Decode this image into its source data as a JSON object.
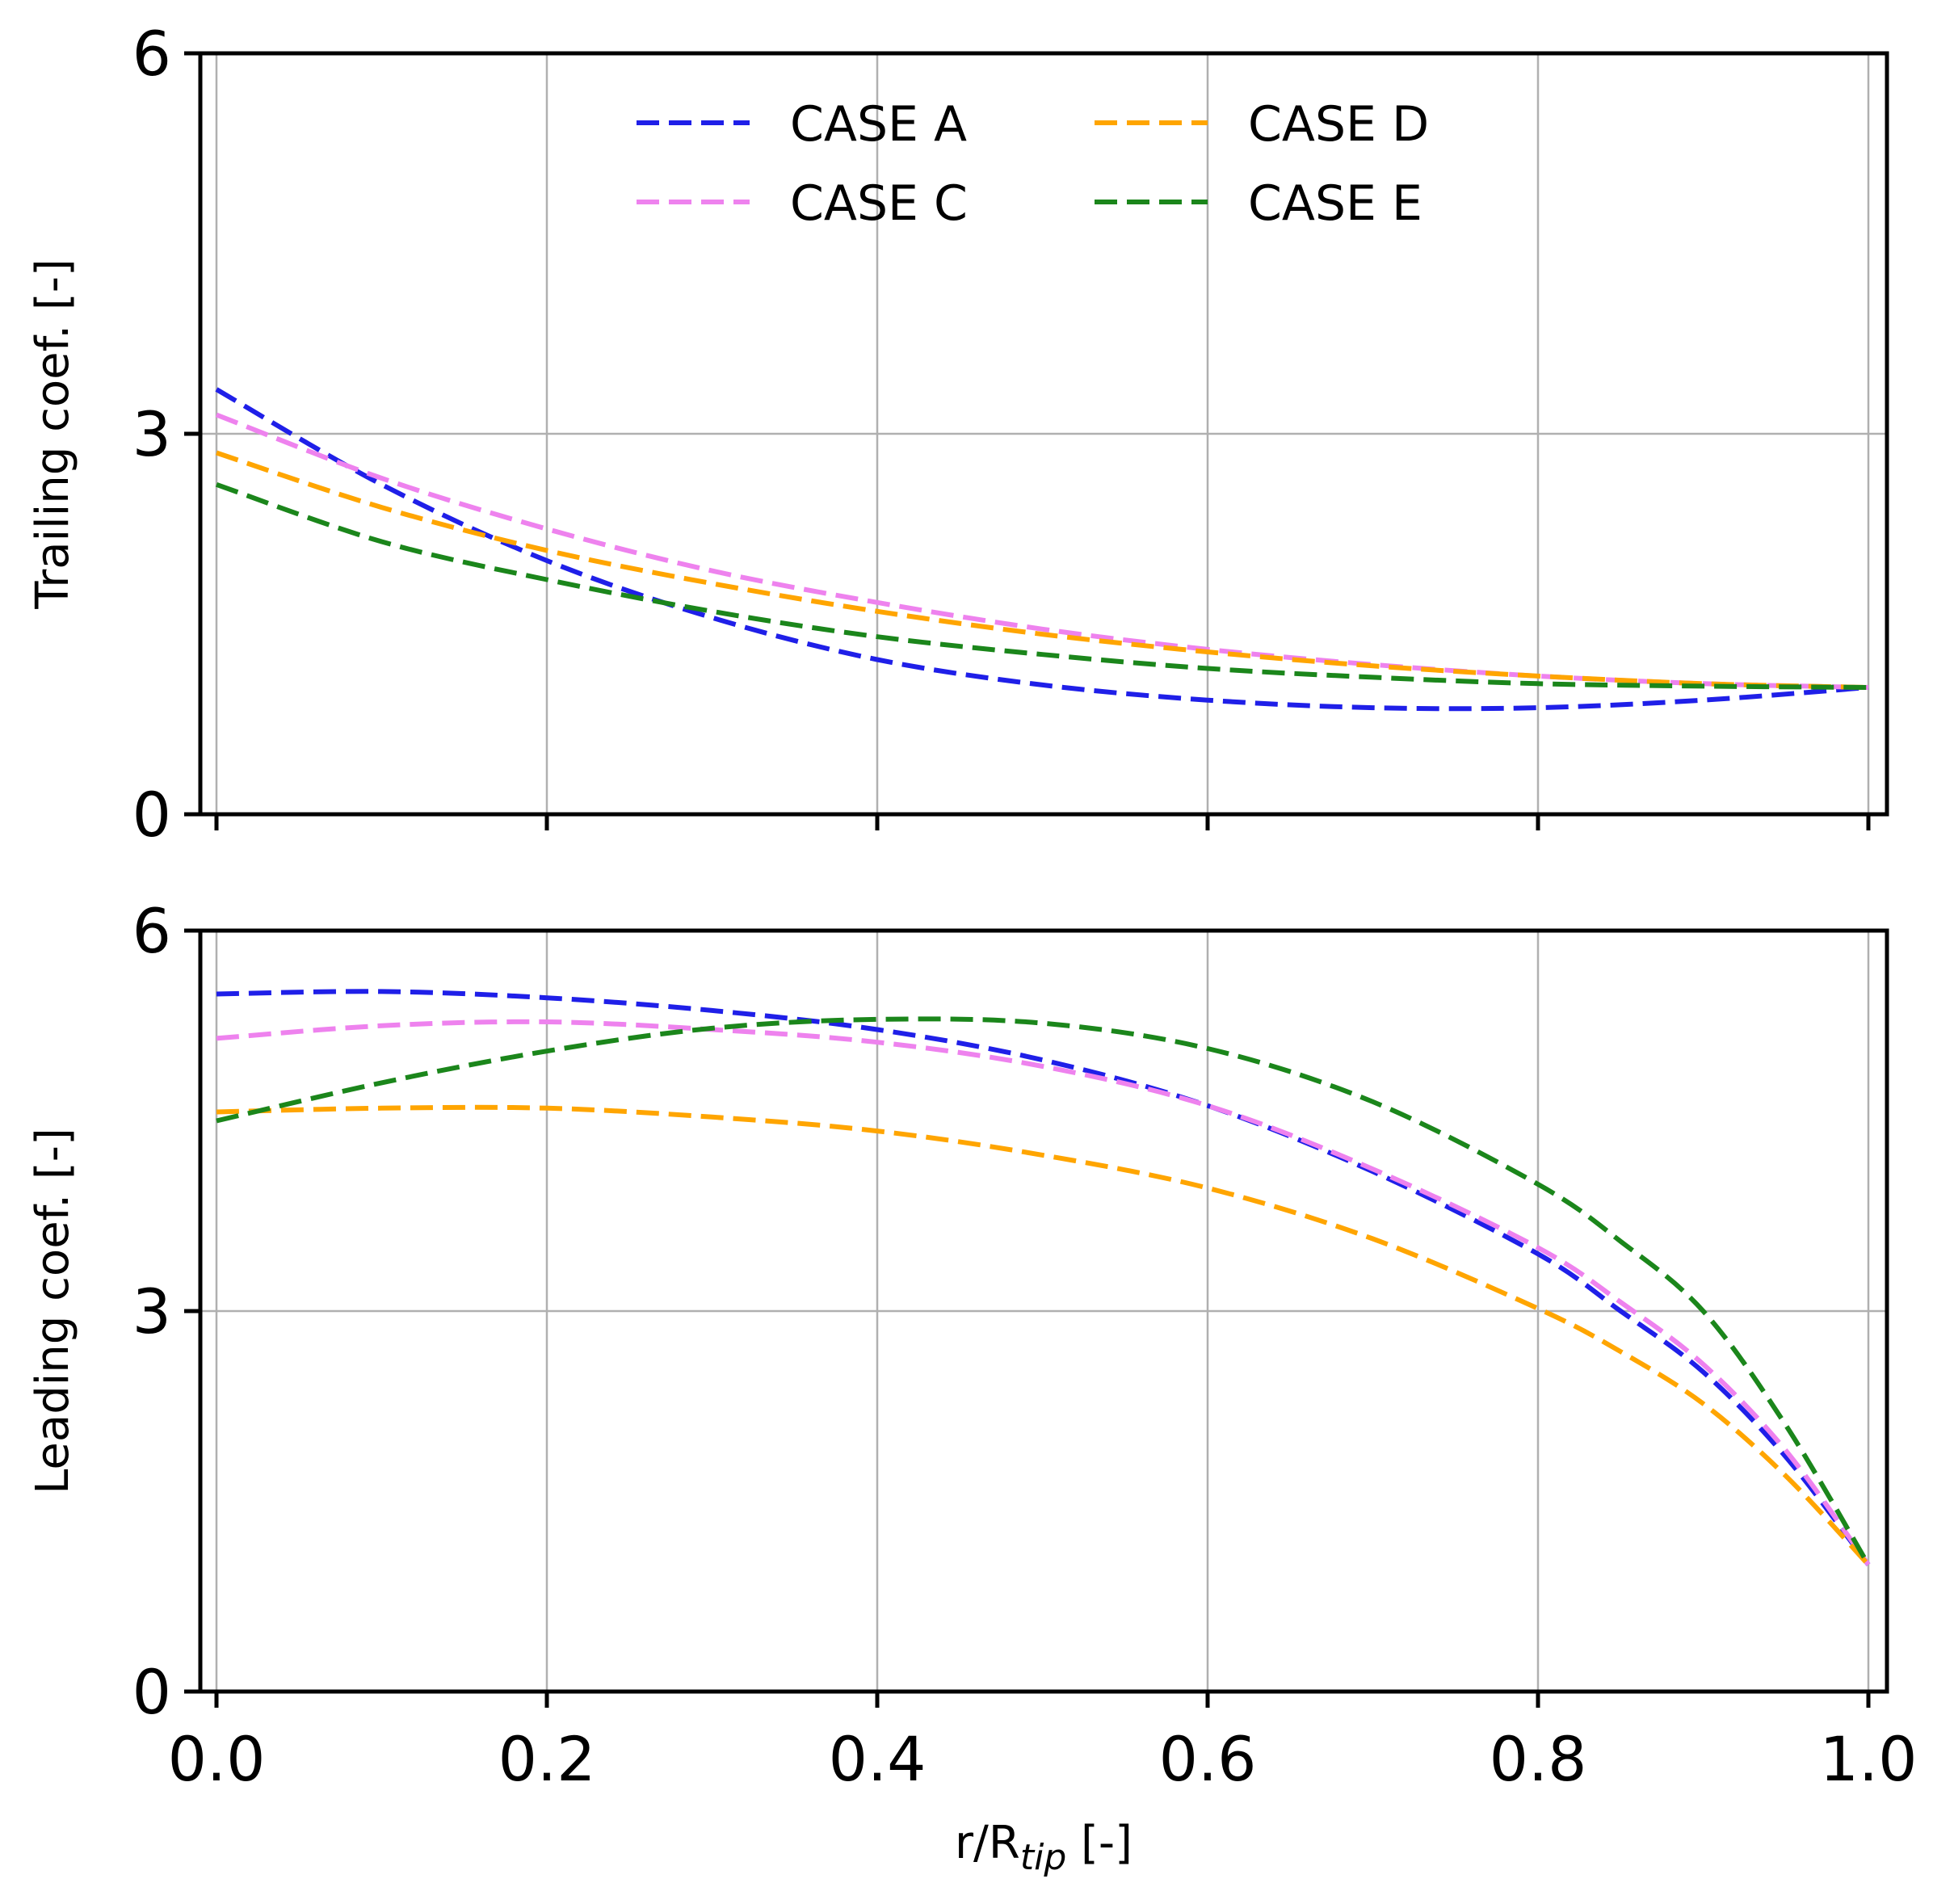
{
  "chart_data": [
    {
      "type": "line",
      "panel": "top",
      "title": "",
      "xlabel": "",
      "ylabel": "Trailing coef. [-]",
      "xlim": [
        0.0,
        1.0
      ],
      "ylim": [
        0,
        6
      ],
      "yticks": [
        "0",
        "3",
        "6"
      ],
      "xticks": [
        0.0,
        0.2,
        0.4,
        0.6,
        0.8,
        1.0
      ],
      "grid": true,
      "legend": {
        "placement": "top-center",
        "columns": 2,
        "entries": [
          "CASE A",
          "CASE C",
          "CASE D",
          "CASE E"
        ]
      },
      "x": [
        0.0,
        0.1,
        0.2,
        0.3,
        0.4,
        0.5,
        0.6,
        0.7,
        0.8,
        0.9,
        1.0
      ],
      "series": [
        {
          "name": "CASE A",
          "color": "#1f1fe8",
          "values": [
            3.35,
            2.6,
            2.0,
            1.55,
            1.22,
            1.02,
            0.9,
            0.84,
            0.84,
            0.9,
            1.0
          ]
        },
        {
          "name": "CASE C",
          "color": "#ee82ee",
          "values": [
            3.15,
            2.65,
            2.25,
            1.92,
            1.67,
            1.46,
            1.3,
            1.18,
            1.09,
            1.03,
            1.0
          ]
        },
        {
          "name": "CASE D",
          "color": "#ffa500",
          "values": [
            2.85,
            2.42,
            2.08,
            1.82,
            1.6,
            1.42,
            1.28,
            1.17,
            1.09,
            1.03,
            1.0
          ]
        },
        {
          "name": "CASE E",
          "color": "#1b861b",
          "values": [
            2.6,
            2.15,
            1.85,
            1.6,
            1.4,
            1.26,
            1.15,
            1.08,
            1.03,
            1.01,
            1.0
          ]
        }
      ]
    },
    {
      "type": "line",
      "panel": "bottom",
      "title": "",
      "xlabel": "r/R",
      "xlabel_sub": "tip",
      "xlabel_suffix": " [-]",
      "ylabel": "Leading coef. [-]",
      "xlim": [
        0.0,
        1.0
      ],
      "ylim": [
        0,
        6
      ],
      "yticks": [
        "0",
        "3",
        "6"
      ],
      "xticks": [
        "0.0",
        "0.2",
        "0.4",
        "0.6",
        "0.8",
        "1.0"
      ],
      "grid": true,
      "x": [
        0.0,
        0.1,
        0.2,
        0.3,
        0.4,
        0.5,
        0.6,
        0.7,
        0.8,
        0.85,
        0.9,
        0.95,
        1.0
      ],
      "series": [
        {
          "name": "CASE A",
          "color": "#1f1fe8",
          "values": [
            5.5,
            5.52,
            5.47,
            5.37,
            5.22,
            4.98,
            4.62,
            4.1,
            3.45,
            3.0,
            2.52,
            1.85,
            1.0
          ]
        },
        {
          "name": "CASE C",
          "color": "#ee82ee",
          "values": [
            5.15,
            5.25,
            5.28,
            5.22,
            5.12,
            4.93,
            4.62,
            4.12,
            3.5,
            3.07,
            2.58,
            1.9,
            1.0
          ]
        },
        {
          "name": "CASE D",
          "color": "#ffa500",
          "values": [
            4.57,
            4.6,
            4.6,
            4.53,
            4.42,
            4.23,
            3.97,
            3.57,
            3.02,
            2.68,
            2.27,
            1.7,
            1.0
          ]
        },
        {
          "name": "CASE E",
          "color": "#1b861b",
          "values": [
            4.5,
            4.8,
            5.05,
            5.23,
            5.3,
            5.27,
            5.07,
            4.65,
            4.0,
            3.55,
            3.0,
            2.1,
            1.0
          ]
        }
      ]
    }
  ]
}
